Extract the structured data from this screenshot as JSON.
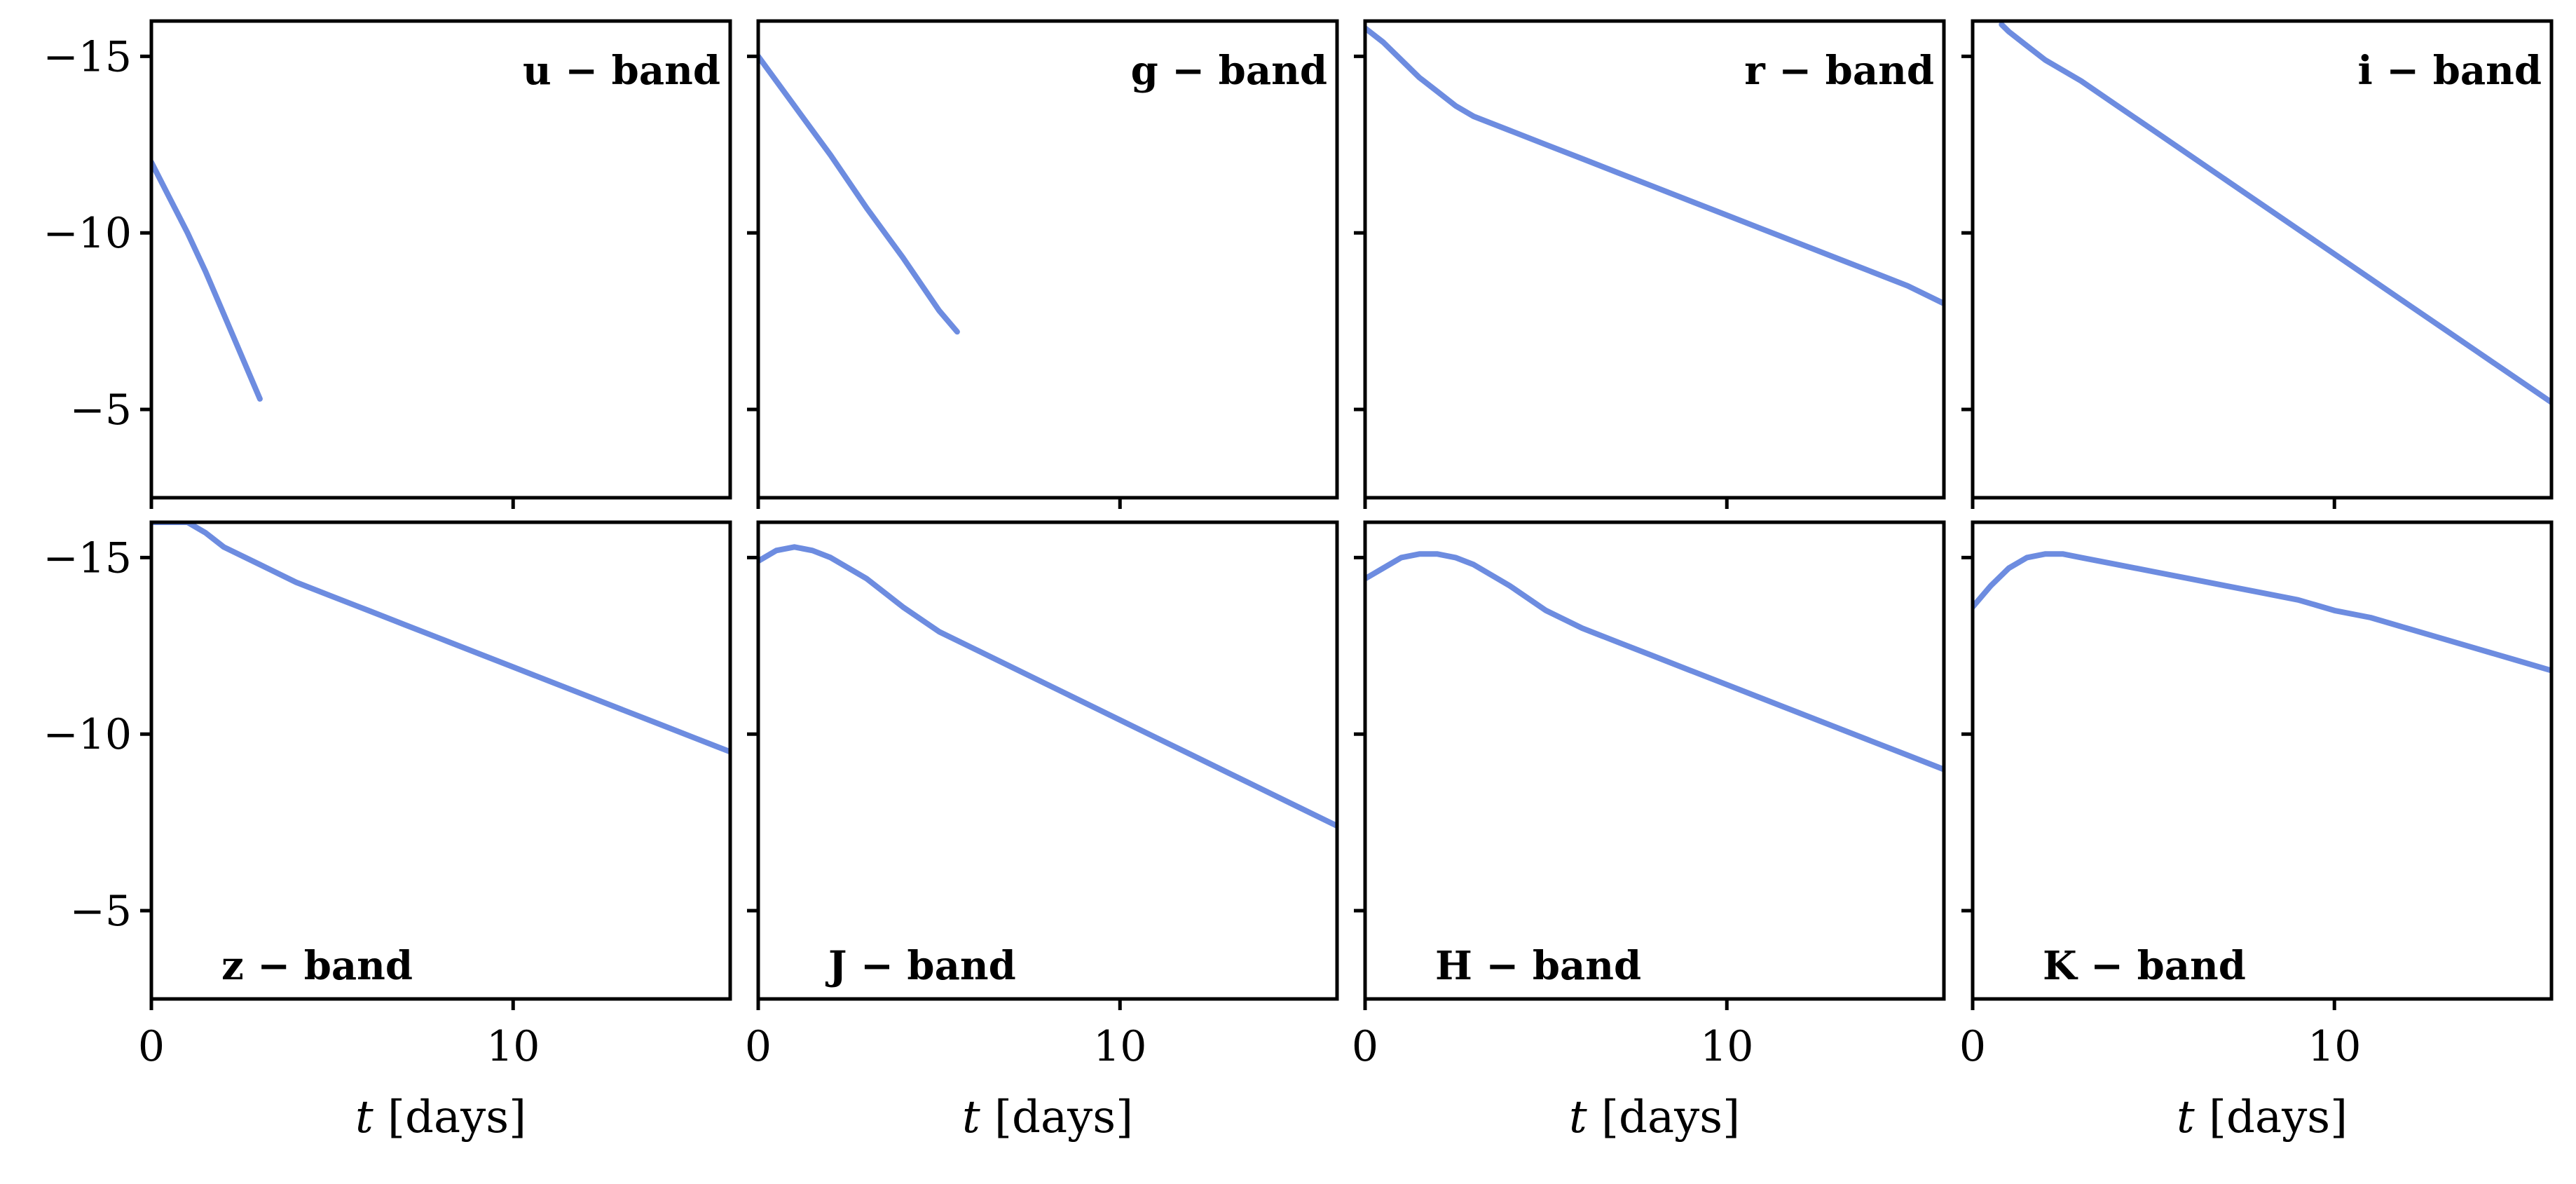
{
  "colors": {
    "line": "#6d8ce0",
    "axes": "#000000",
    "background": "#ffffff"
  },
  "chart_data": {
    "type": "line",
    "layout": "2x4 grid, shared x and y axes",
    "y_inverted": true,
    "xlim": [
      0,
      16
    ],
    "ylim": [
      -2.5,
      -16
    ],
    "xticks": [
      0,
      10
    ],
    "xtick_labels": [
      "0",
      "10"
    ],
    "yticks": [
      -15,
      -10,
      -5
    ],
    "ytick_labels": [
      "−15",
      "−10",
      "−5"
    ],
    "xlabel_var": "t",
    "xlabel_unit": "[days]",
    "grid": false,
    "panels": [
      {
        "label": "u − band",
        "label_position": "top-right",
        "x": [
          0,
          0.5,
          1,
          1.5,
          2,
          2.5,
          3.0
        ],
        "y": [
          -12.0,
          -11.0,
          -10.0,
          -8.9,
          -7.7,
          -6.5,
          -5.3
        ]
      },
      {
        "label": "g − band",
        "label_position": "top-right",
        "x": [
          0,
          0.5,
          1,
          1.5,
          2,
          3,
          4,
          5,
          5.5
        ],
        "y": [
          -15.0,
          -14.3,
          -13.6,
          -12.9,
          -12.2,
          -10.7,
          -9.3,
          -7.8,
          -7.2
        ]
      },
      {
        "label": "r − band",
        "label_position": "top-right",
        "x": [
          0,
          0.5,
          1,
          1.5,
          2,
          2.5,
          3,
          4,
          5,
          6,
          7,
          8,
          9,
          10,
          11,
          12,
          13,
          14,
          15,
          16
        ],
        "y": [
          -15.8,
          -15.4,
          -14.9,
          -14.4,
          -14.0,
          -13.6,
          -13.3,
          -12.9,
          -12.5,
          -12.1,
          -11.7,
          -11.3,
          -10.9,
          -10.5,
          -10.1,
          -9.7,
          -9.3,
          -8.9,
          -8.5,
          -8.0
        ]
      },
      {
        "label": "i − band",
        "label_position": "top-right",
        "x": [
          0.8,
          1,
          1.5,
          2,
          3,
          4,
          5,
          6,
          7,
          8,
          9,
          10,
          11,
          12,
          13,
          14,
          15,
          16
        ],
        "y": [
          -15.9,
          -15.7,
          -15.3,
          -14.9,
          -14.3,
          -13.6,
          -12.9,
          -12.2,
          -11.5,
          -10.8,
          -10.1,
          -9.4,
          -8.7,
          -8.0,
          -7.3,
          -6.6,
          -5.9,
          -5.2
        ]
      },
      {
        "label": "z − band",
        "label_position": "bottom-left",
        "x": [
          0,
          1,
          1.5,
          2,
          3,
          4,
          5,
          6,
          7,
          8,
          9,
          10,
          11,
          12,
          13,
          14,
          15,
          16
        ],
        "y": [
          -16.0,
          -16.0,
          -15.7,
          -15.3,
          -14.8,
          -14.3,
          -13.9,
          -13.5,
          -13.1,
          -12.7,
          -12.3,
          -11.9,
          -11.5,
          -11.1,
          -10.7,
          -10.3,
          -9.9,
          -9.5
        ]
      },
      {
        "label": "J − band",
        "label_position": "bottom-left",
        "x": [
          0,
          0.5,
          1,
          1.5,
          2,
          3,
          4,
          5,
          6,
          7,
          8,
          9,
          10,
          11,
          12,
          13,
          14,
          15,
          16
        ],
        "y": [
          -14.9,
          -15.2,
          -15.3,
          -15.2,
          -15.0,
          -14.4,
          -13.6,
          -12.9,
          -12.4,
          -11.9,
          -11.4,
          -10.9,
          -10.4,
          -9.9,
          -9.4,
          -8.9,
          -8.4,
          -7.9,
          -7.4
        ]
      },
      {
        "label": "H − band",
        "label_position": "bottom-left",
        "x": [
          0,
          0.5,
          1,
          1.5,
          2,
          2.5,
          3,
          4,
          5,
          6,
          7,
          8,
          9,
          10,
          11,
          12,
          13,
          14,
          15,
          16
        ],
        "y": [
          -14.4,
          -14.7,
          -15.0,
          -15.1,
          -15.1,
          -15.0,
          -14.8,
          -14.2,
          -13.5,
          -13.0,
          -12.6,
          -12.2,
          -11.8,
          -11.4,
          -11.0,
          -10.6,
          -10.2,
          -9.8,
          -9.4,
          -9.0
        ]
      },
      {
        "label": "K − band",
        "label_position": "bottom-left",
        "x": [
          0,
          0.5,
          1,
          1.5,
          2,
          2.5,
          3,
          4,
          5,
          6,
          7,
          8,
          9,
          10,
          11,
          12,
          13,
          14,
          15,
          16
        ],
        "y": [
          -13.6,
          -14.2,
          -14.7,
          -15.0,
          -15.1,
          -15.1,
          -15.0,
          -14.8,
          -14.6,
          -14.4,
          -14.2,
          -14.0,
          -13.8,
          -13.5,
          -13.3,
          -13.0,
          -12.7,
          -12.4,
          -12.1,
          -11.8
        ]
      }
    ]
  }
}
